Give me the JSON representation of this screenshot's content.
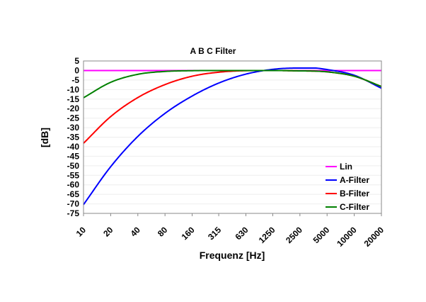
{
  "chart_data": {
    "type": "line",
    "title": "A B C Filter",
    "xlabel": "Frequenz [Hz]",
    "ylabel": "[dB]",
    "x_scale": "log",
    "x_ticks": [
      10,
      20,
      40,
      80,
      160,
      315,
      630,
      1250,
      2500,
      5000,
      10000,
      20000
    ],
    "x_tick_labels": [
      "10",
      "20",
      "40",
      "80",
      "160",
      "315",
      "630",
      "1250",
      "2500",
      "5000",
      "10000",
      "20000"
    ],
    "xlim": [
      10,
      20000
    ],
    "ylim": [
      -75,
      5
    ],
    "y_ticks": [
      5,
      0,
      -5,
      -10,
      -15,
      -20,
      -25,
      -30,
      -35,
      -40,
      -45,
      -50,
      -55,
      -60,
      -65,
      -70,
      -75
    ],
    "grid": true,
    "legend_position": "bottom-right",
    "x": [
      10,
      20,
      40,
      80,
      160,
      315,
      630,
      1250,
      2500,
      3500,
      5000,
      10000,
      20000
    ],
    "series": [
      {
        "name": "Lin",
        "color": "#ff00ff",
        "values": [
          0,
          0,
          0,
          0,
          0,
          0,
          0,
          0,
          0,
          0,
          0,
          0,
          0
        ]
      },
      {
        "name": "A-Filter",
        "color": "#0000ff",
        "values": [
          -70.4,
          -50.5,
          -34.6,
          -22.5,
          -13.4,
          -6.6,
          -1.9,
          0.6,
          1.3,
          1.3,
          0.5,
          -2.5,
          -9.3
        ]
      },
      {
        "name": "B-Filter",
        "color": "#ff0000",
        "values": [
          -38.2,
          -24.2,
          -14.2,
          -7.4,
          -3.0,
          -0.9,
          -0.1,
          0.0,
          -0.2,
          -0.3,
          -0.7,
          -3.0,
          -8.4
        ]
      },
      {
        "name": "C-Filter",
        "color": "#008000",
        "values": [
          -14.3,
          -6.2,
          -2.0,
          -0.5,
          -0.1,
          0.0,
          0.0,
          0.0,
          -0.2,
          -0.3,
          -0.7,
          -3.0,
          -8.4
        ]
      }
    ]
  }
}
